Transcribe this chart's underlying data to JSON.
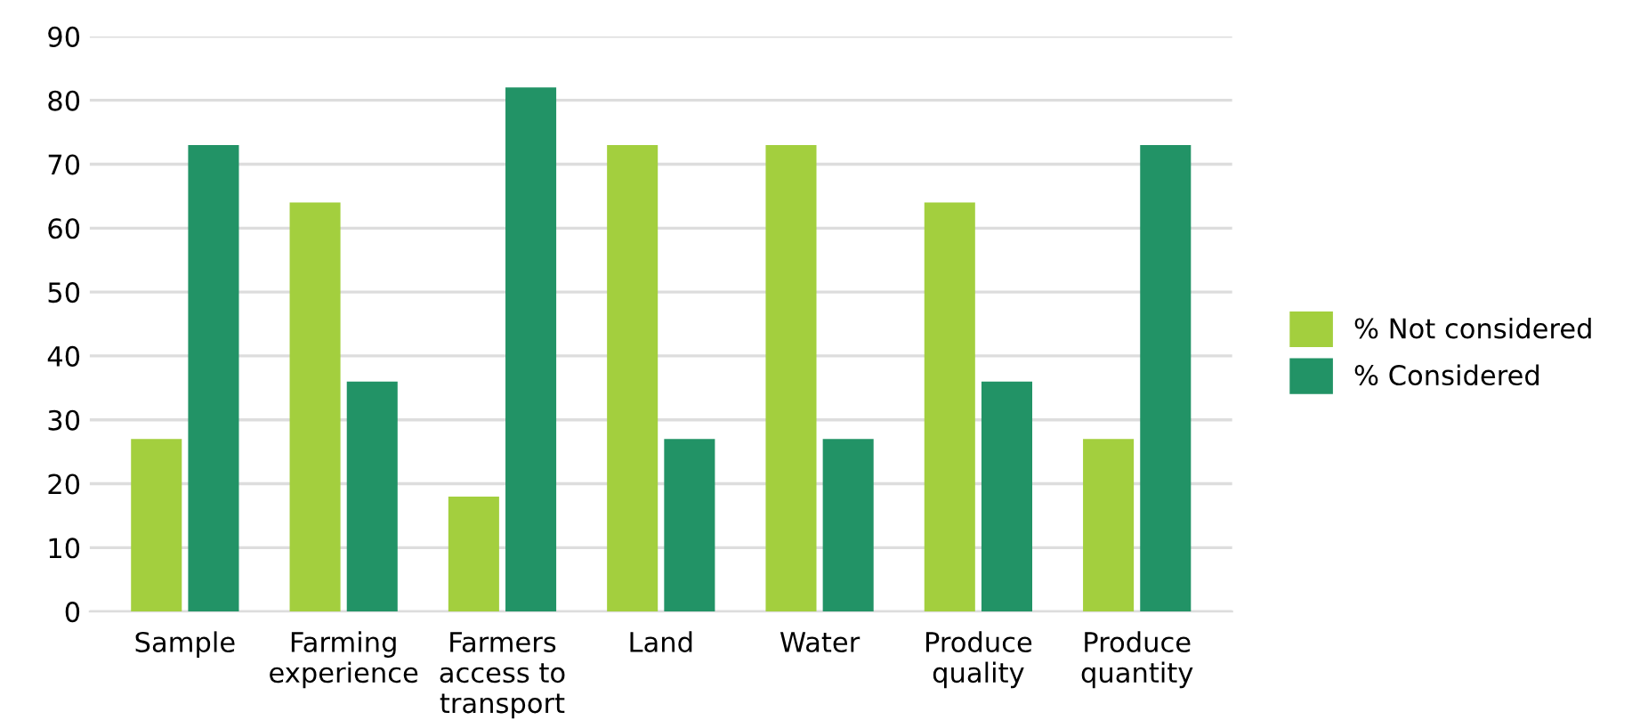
{
  "chart_data": {
    "type": "bar",
    "categories": [
      "Sample",
      "Farming\nexperience",
      "Farmers\naccess to\ntransport",
      "Land",
      "Water",
      "Produce\nquality",
      "Produce\nquantity"
    ],
    "series": [
      {
        "name": "% Not considered",
        "color": "#a3cf3e",
        "values": [
          27,
          64,
          18,
          73,
          73,
          64,
          27
        ]
      },
      {
        "name": "% Considered",
        "color": "#229366",
        "values": [
          73,
          36,
          82,
          27,
          27,
          36,
          73
        ]
      }
    ],
    "ylim": [
      0,
      90
    ],
    "yticks": [
      0,
      10,
      20,
      30,
      40,
      50,
      60,
      70,
      80,
      90
    ],
    "grid": "y",
    "legend": "right"
  }
}
